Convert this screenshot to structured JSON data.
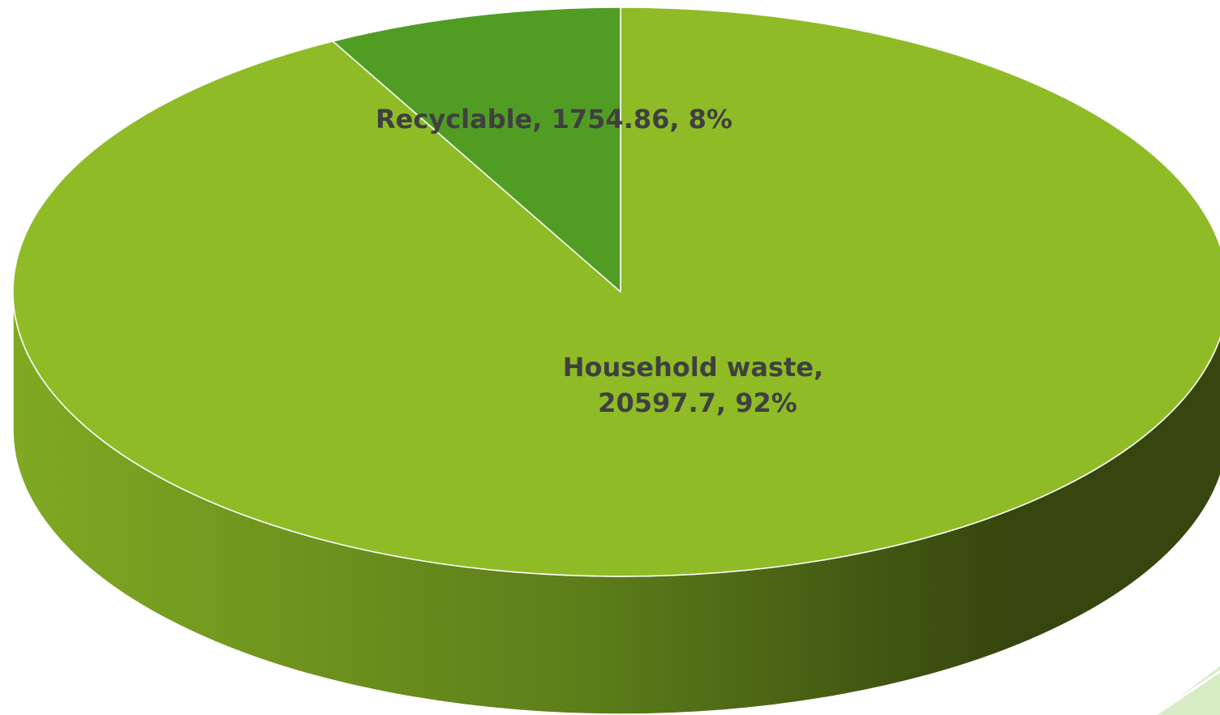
{
  "chart_data": {
    "type": "pie",
    "style": "3d",
    "slices": [
      {
        "name": "Household waste",
        "value": 20597.7,
        "percent": 92,
        "label_lines": [
          "Household waste,",
          "20597.7, 92%"
        ],
        "color": "#8fbc26",
        "side_color_light": "#80a922",
        "side_color_dark": "#36460e"
      },
      {
        "name": "Recyclable",
        "value": 1754.86,
        "percent": 8,
        "label_lines": [
          "Recyclable, 1754.86, 8%"
        ],
        "color": "#519d24"
      }
    ],
    "legend": "none",
    "label_color": "#404040",
    "edge_color": "#ffffff"
  },
  "decoration": {
    "corner_accent_color": "#d8ecc4"
  }
}
